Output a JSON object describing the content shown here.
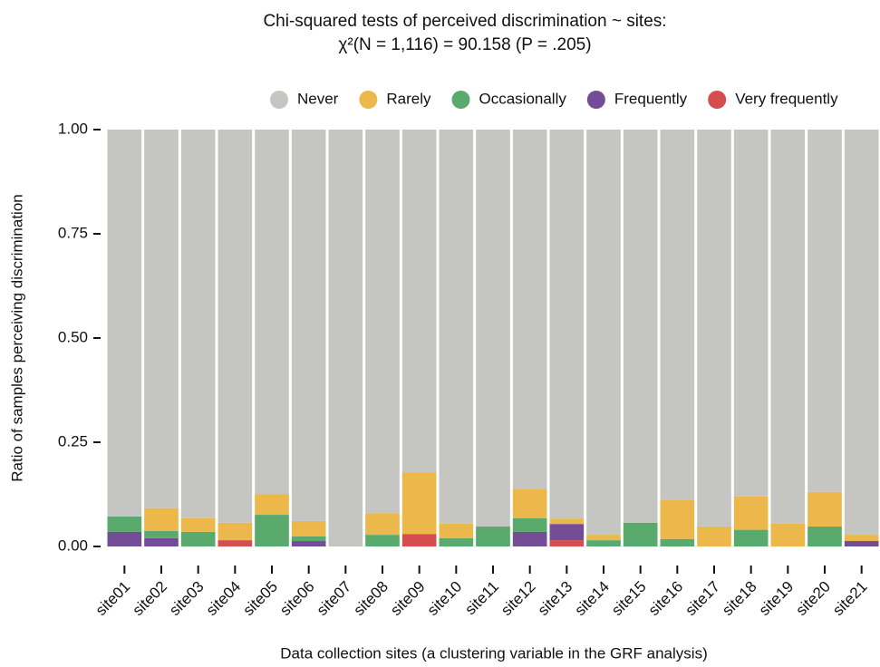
{
  "chart_data": {
    "type": "stacked-bar",
    "title": "Chi-squared tests of perceived discrimination ~ sites:",
    "subtitle": "χ²(N = 1,116) = 90.158 (P = .205)",
    "x_label": "Data collection sites (a clustering variable in the GRF analysis)",
    "y_label": "Ratio of samples perceiving discrimination",
    "categories": [
      "site01",
      "site02",
      "site03",
      "site04",
      "site05",
      "site06",
      "site07",
      "site08",
      "site09",
      "site10",
      "site11",
      "site12",
      "site13",
      "site14",
      "site15",
      "site16",
      "site17",
      "site18",
      "site19",
      "site20",
      "site21"
    ],
    "series": [
      {
        "name": "Never",
        "color": "#c5c6c1",
        "values": [
          0.928,
          0.908,
          0.932,
          0.943,
          0.874,
          0.939,
          1,
          0.92,
          0.822,
          0.945,
          0.952,
          0.863,
          0.933,
          0.972,
          0.943,
          0.889,
          0.952,
          0.88,
          0.945,
          0.869,
          0.972
        ]
      },
      {
        "name": "Rarely",
        "color": "#ecb84b",
        "values": [
          0,
          0.055,
          0.033,
          0.042,
          0.05,
          0.037,
          0,
          0.052,
          0.148,
          0.035,
          0,
          0.069,
          0.013,
          0.013,
          0,
          0.093,
          0.048,
          0.08,
          0.055,
          0.083,
          0.015
        ]
      },
      {
        "name": "Occasionally",
        "color": "#5aaa6e",
        "values": [
          0.037,
          0.017,
          0.035,
          0,
          0.076,
          0.011,
          0,
          0.028,
          0,
          0.02,
          0.048,
          0.033,
          0,
          0.015,
          0.057,
          0.018,
          0,
          0.04,
          0,
          0.048,
          0
        ]
      },
      {
        "name": "Frequently",
        "color": "#734e96",
        "values": [
          0.035,
          0.02,
          0,
          0,
          0,
          0.013,
          0,
          0,
          0,
          0,
          0,
          0.035,
          0.039,
          0,
          0,
          0,
          0,
          0,
          0,
          0,
          0.013
        ]
      },
      {
        "name": "Very frequently",
        "color": "#d64d4f",
        "values": [
          0,
          0,
          0,
          0.015,
          0,
          0,
          0,
          0,
          0.03,
          0,
          0,
          0,
          0.015,
          0,
          0,
          0,
          0,
          0,
          0,
          0,
          0
        ]
      }
    ],
    "ylim": [
      0,
      1
    ],
    "yticks": [
      {
        "value": 0,
        "label": "0.00"
      },
      {
        "value": 0.25,
        "label": "0.25"
      },
      {
        "value": 0.5,
        "label": "0.50"
      },
      {
        "value": 0.75,
        "label": "0.75"
      },
      {
        "value": 1,
        "label": "1.00"
      }
    ],
    "legend": "top-right"
  }
}
